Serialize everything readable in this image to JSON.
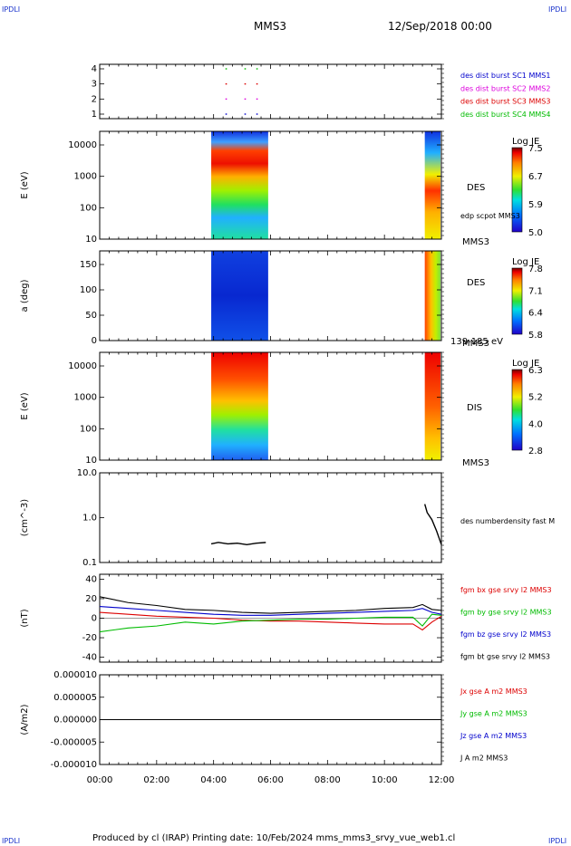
{
  "header": {
    "spacecraft": "MMS3",
    "date": "12/Sep/2018 00:00"
  },
  "corner_logo": "IPDLI",
  "footer": "Produced by cl (IRAP)   Printing date: 10/Feb/2024   mms_mms3_srvy_vue_web1.cl",
  "colors": {
    "red": "#dd0000",
    "green": "#00bb00",
    "blue": "#0000cc",
    "magenta": "#dd00dd",
    "black": "#000000"
  },
  "chart_data": [
    {
      "type": "scatter",
      "id": "burst",
      "ylim": [
        0.7,
        4.3
      ],
      "yticks": [
        "1",
        "2",
        "3",
        "4"
      ],
      "series": [
        {
          "name": "des dist burst SC1 MMS1",
          "color": "#0000cc",
          "y": 1
        },
        {
          "name": "des dist burst SC2 MMS2",
          "color": "#dd00dd",
          "y": 2
        },
        {
          "name": "des dist burst SC3 MMS3",
          "color": "#dd0000",
          "y": 3
        },
        {
          "name": "des dist burst SC4 MMS4",
          "color": "#00bb00",
          "y": 4
        }
      ],
      "x": [
        "04:25",
        "05:05",
        "05:30"
      ]
    },
    {
      "type": "heatmap",
      "id": "des_energy",
      "ylabel": "E (eV)",
      "yticks": [
        "10",
        "100",
        "1000",
        "10000"
      ],
      "label": "DES",
      "sublabel": "MMS3",
      "overlay_label": "edp scpot MMS3",
      "colorbar": {
        "title": "Log JE",
        "ticks": [
          "7.5",
          "6.7",
          "5.9",
          "5.0"
        ]
      },
      "intervals": [
        [
          "03:55",
          "05:55"
        ],
        [
          "11:25",
          "12:00"
        ]
      ]
    },
    {
      "type": "heatmap",
      "id": "des_pitch",
      "ylabel": "a (deg)",
      "yticks": [
        "0",
        "50",
        "100",
        "150"
      ],
      "label": "DES",
      "sublabel": "MMS3",
      "energy_range": "139-185 eV",
      "colorbar": {
        "title": "Log JE",
        "ticks": [
          "7.8",
          "7.1",
          "6.4",
          "5.8"
        ]
      },
      "intervals": [
        [
          "03:55",
          "05:55"
        ],
        [
          "11:25",
          "12:00"
        ]
      ]
    },
    {
      "type": "heatmap",
      "id": "dis_energy",
      "ylabel": "E (eV)",
      "yticks": [
        "10",
        "100",
        "1000",
        "10000"
      ],
      "label": "DIS",
      "sublabel": "MMS3",
      "colorbar": {
        "title": "Log JE",
        "ticks": [
          "6.3",
          "5.2",
          "4.0",
          "2.8"
        ]
      },
      "intervals": [
        [
          "03:55",
          "05:55"
        ],
        [
          "11:25",
          "12:00"
        ]
      ]
    },
    {
      "type": "line",
      "id": "density",
      "ylabel": "(cm^-3)",
      "yticks": [
        "0.1",
        "1.0",
        "10.0"
      ],
      "log": true,
      "series": [
        {
          "name": "des numberdensity fast M",
          "color": "#000000",
          "x": [
            "03:55",
            "04:10",
            "04:30",
            "04:50",
            "05:10",
            "05:30",
            "05:50",
            "11:25",
            "11:30",
            "11:40",
            "11:50",
            "12:00"
          ],
          "y": [
            0.26,
            0.28,
            0.26,
            0.27,
            0.25,
            0.27,
            0.28,
            2.0,
            1.3,
            0.9,
            0.5,
            0.25
          ]
        }
      ]
    },
    {
      "type": "line",
      "id": "fgm",
      "ylabel": "(nT)",
      "yticks": [
        "-40",
        "-20",
        "0",
        "20",
        "40"
      ],
      "ylim": [
        -45,
        45
      ],
      "series": [
        {
          "name": "fgm bx gse srvy l2 MMS3",
          "color": "#dd0000",
          "x": [
            "00:00",
            "01:00",
            "02:00",
            "03:00",
            "04:00",
            "05:00",
            "06:00",
            "07:00",
            "08:00",
            "09:00",
            "10:00",
            "11:00",
            "11:20",
            "11:40",
            "12:00"
          ],
          "y": [
            6,
            4,
            2,
            1,
            0,
            -2,
            -3,
            -3,
            -4,
            -5,
            -6,
            -6,
            -12,
            -4,
            2
          ]
        },
        {
          "name": "fgm by gse srvy l2 MMS3",
          "color": "#00bb00",
          "x": [
            "00:00",
            "01:00",
            "02:00",
            "03:00",
            "04:00",
            "05:00",
            "06:00",
            "07:00",
            "08:00",
            "09:00",
            "10:00",
            "11:00",
            "11:20",
            "11:40",
            "12:00"
          ],
          "y": [
            -14,
            -10,
            -8,
            -4,
            -6,
            -3,
            -2,
            -1,
            -1,
            0,
            1,
            1,
            -8,
            4,
            3
          ]
        },
        {
          "name": "fgm bz gse srvy l2 MMS3",
          "color": "#0000cc",
          "x": [
            "00:00",
            "01:00",
            "02:00",
            "03:00",
            "04:00",
            "05:00",
            "06:00",
            "07:00",
            "08:00",
            "09:00",
            "10:00",
            "11:00",
            "11:20",
            "11:40",
            "12:00"
          ],
          "y": [
            12,
            10,
            8,
            6,
            4,
            3,
            3,
            4,
            5,
            6,
            7,
            8,
            10,
            6,
            4
          ]
        },
        {
          "name": "fgm bt gse srvy l2 MMS3",
          "color": "#000000",
          "x": [
            "00:00",
            "01:00",
            "02:00",
            "03:00",
            "04:00",
            "05:00",
            "06:00",
            "07:00",
            "08:00",
            "09:00",
            "10:00",
            "11:00",
            "11:20",
            "11:40",
            "12:00"
          ],
          "y": [
            22,
            16,
            13,
            9,
            8,
            6,
            5,
            6,
            7,
            8,
            10,
            11,
            14,
            9,
            8
          ]
        }
      ]
    },
    {
      "type": "line",
      "id": "current",
      "ylabel": "(A/m2)",
      "yticks": [
        "-0.000010",
        "-0.000005",
        "0.000000",
        "0.000005",
        "0.000010"
      ],
      "ylim": [
        -1e-05,
        1e-05
      ],
      "series": [
        {
          "name": "Jx gse A m2 MMS3",
          "color": "#dd0000"
        },
        {
          "name": "Jy gse A m2 MMS3",
          "color": "#00bb00"
        },
        {
          "name": "Jz gse A m2 MMS3",
          "color": "#0000cc"
        },
        {
          "name": "J A m2 MMS3",
          "color": "#000000",
          "x": [
            "00:00",
            "12:00"
          ],
          "y": [
            0,
            0
          ]
        }
      ]
    }
  ],
  "xaxis": {
    "ticks": [
      "00:00",
      "02:00",
      "04:00",
      "06:00",
      "08:00",
      "10:00",
      "12:00"
    ]
  }
}
